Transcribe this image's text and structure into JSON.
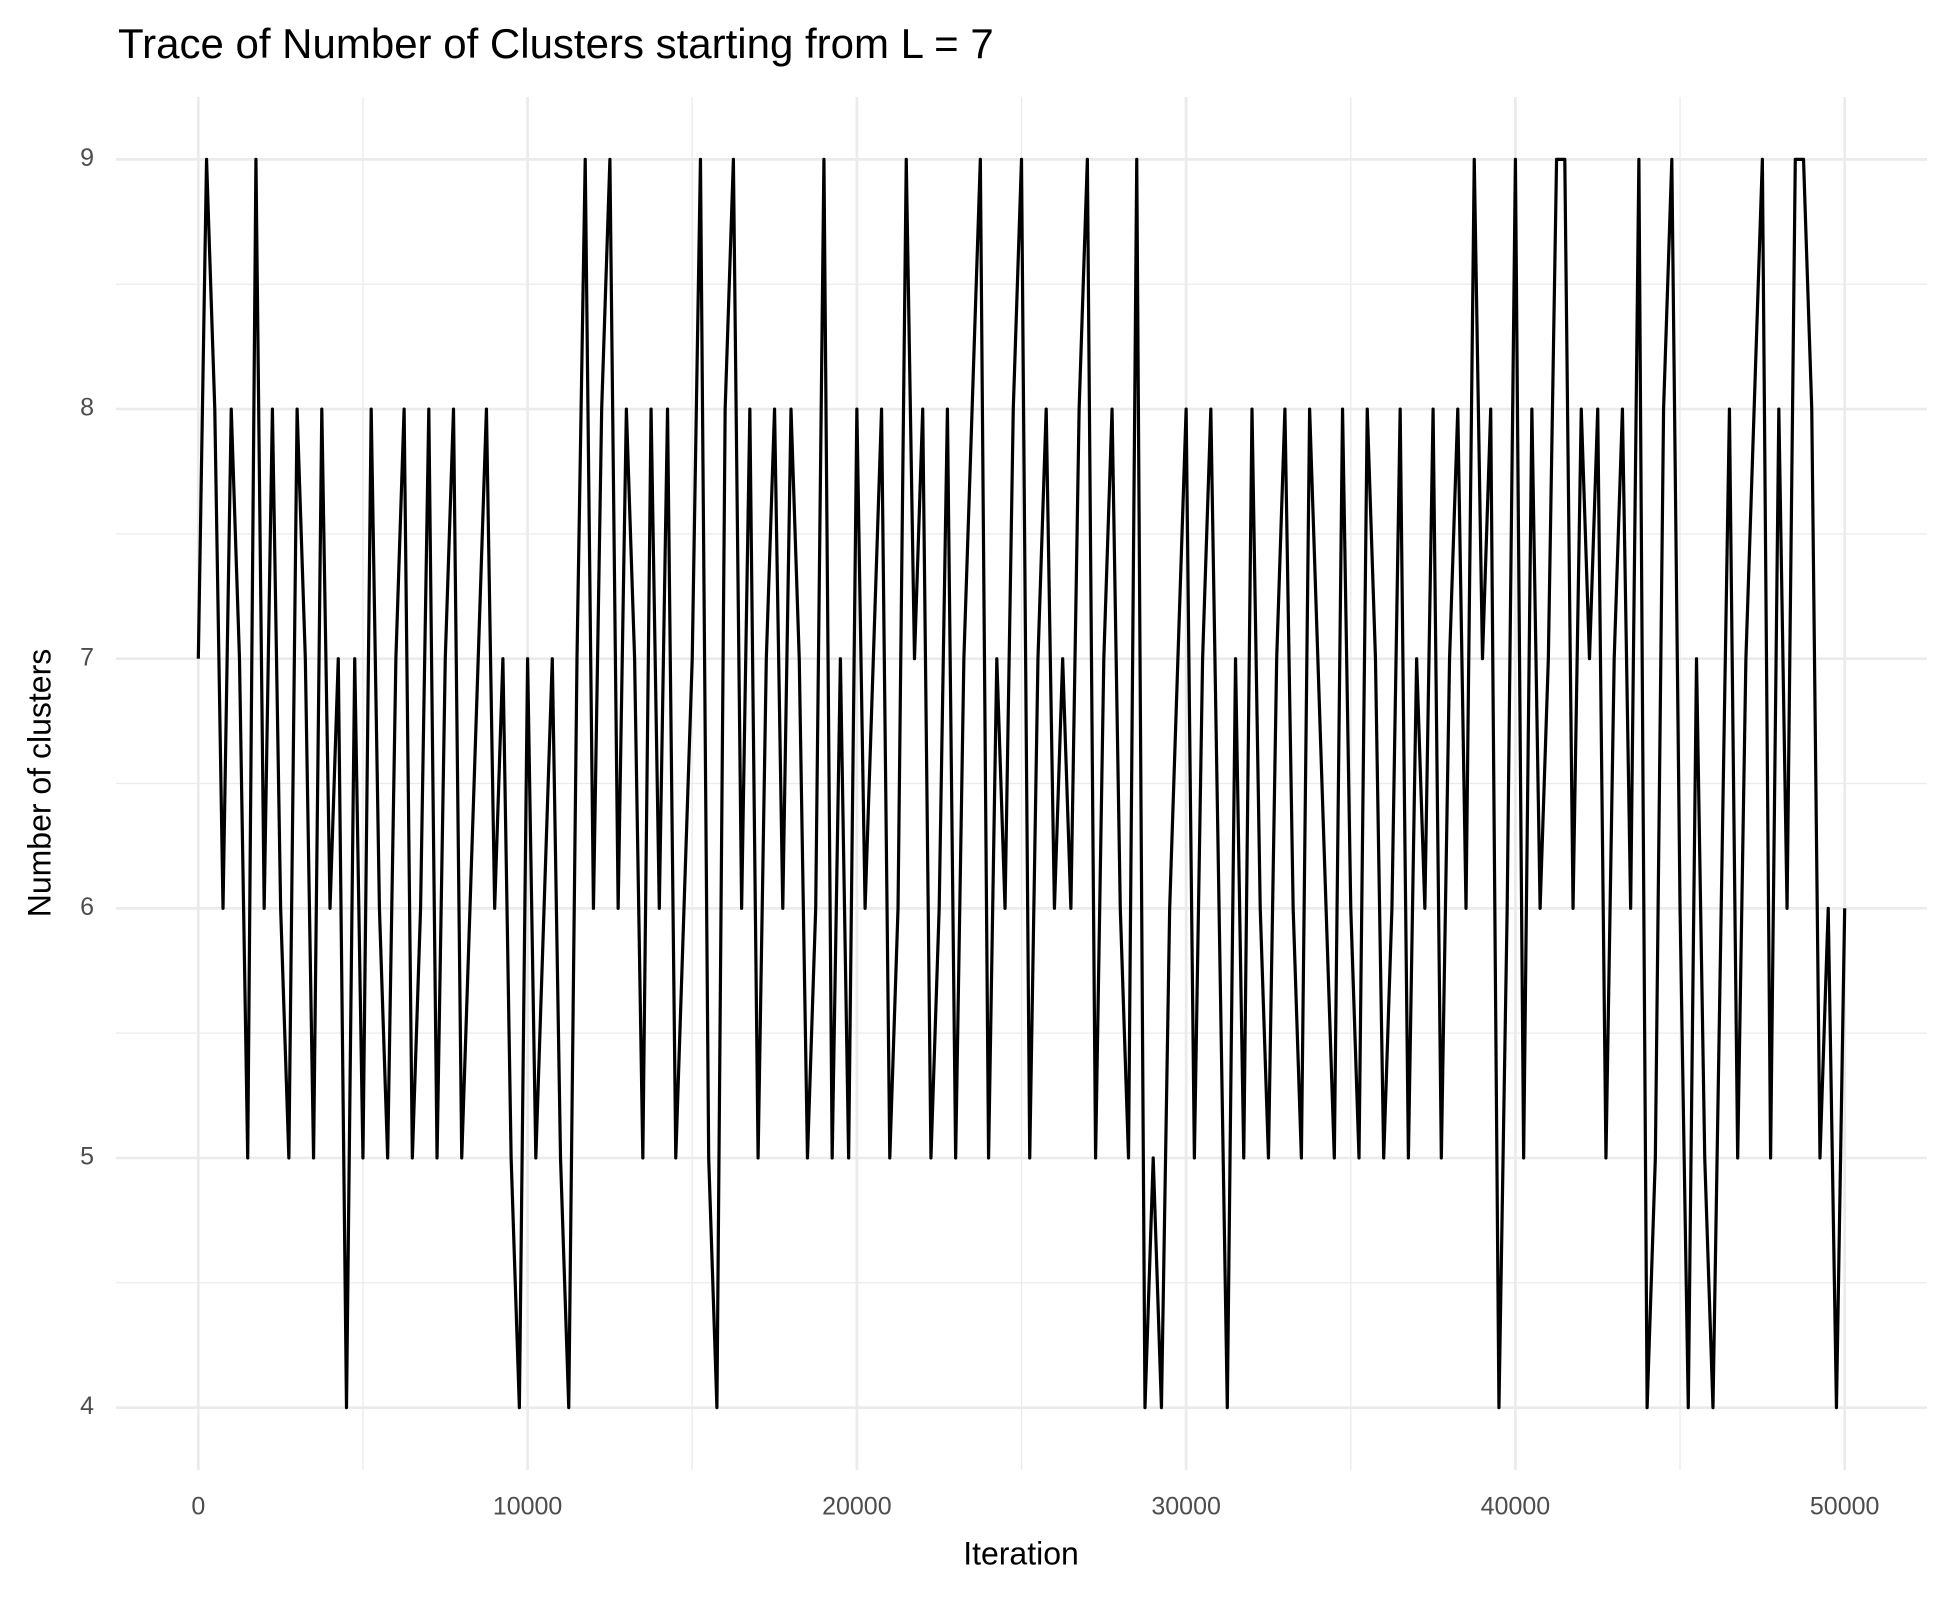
{
  "chart_data": {
    "type": "line",
    "title": "Trace of Number of Clusters starting from L = 7",
    "x_label": "Iteration",
    "y_label": "Number of clusters",
    "x": [
      0,
      250,
      500,
      750,
      1000,
      1250,
      1500,
      1750,
      2000,
      2250,
      2500,
      2750,
      3000,
      3250,
      3500,
      3750,
      4000,
      4250,
      4500,
      4750,
      5000,
      5250,
      5500,
      5750,
      6000,
      6250,
      6500,
      6750,
      7000,
      7250,
      7500,
      7750,
      8000,
      8250,
      8500,
      8750,
      9000,
      9250,
      9500,
      9750,
      10000,
      10250,
      10500,
      10750,
      11000,
      11250,
      11500,
      11750,
      12000,
      12250,
      12500,
      12750,
      13000,
      13250,
      13500,
      13750,
      14000,
      14250,
      14500,
      14750,
      15000,
      15250,
      15500,
      15750,
      16000,
      16250,
      16500,
      16750,
      17000,
      17250,
      17500,
      17750,
      18000,
      18250,
      18500,
      18750,
      19000,
      19250,
      19500,
      19750,
      20000,
      20250,
      20500,
      20750,
      21000,
      21250,
      21500,
      21750,
      22000,
      22250,
      22500,
      22750,
      23000,
      23250,
      23500,
      23750,
      24000,
      24250,
      24500,
      24750,
      25000,
      25250,
      25500,
      25750,
      26000,
      26250,
      26500,
      26750,
      27000,
      27250,
      27500,
      27750,
      28000,
      28250,
      28500,
      28750,
      29000,
      29250,
      29500,
      29750,
      30000,
      30250,
      30500,
      30750,
      31000,
      31250,
      31500,
      31750,
      32000,
      32250,
      32500,
      32750,
      33000,
      33250,
      33500,
      33750,
      34000,
      34250,
      34500,
      34750,
      35000,
      35250,
      35500,
      35750,
      36000,
      36250,
      36500,
      36750,
      37000,
      37250,
      37500,
      37750,
      38000,
      38250,
      38500,
      38750,
      39000,
      39250,
      39500,
      39750,
      40000,
      40250,
      40500,
      40750,
      41000,
      41250,
      41500,
      41750,
      42000,
      42250,
      42500,
      42750,
      43000,
      43250,
      43500,
      43750,
      44000,
      44250,
      44500,
      44750,
      45000,
      45250,
      45500,
      45750,
      46000,
      46250,
      46500,
      46750,
      47000,
      47250,
      47500,
      47750,
      48000,
      48250,
      48500,
      48750,
      49000,
      49250,
      49500,
      49750,
      50000
    ],
    "series": [
      {
        "name": "Number of clusters",
        "color": "#000000",
        "values": [
          7,
          9,
          8,
          6,
          8,
          7,
          5,
          9,
          6,
          8,
          6,
          5,
          8,
          7,
          5,
          8,
          6,
          7,
          4,
          7,
          5,
          8,
          6,
          5,
          7,
          8,
          5,
          6,
          8,
          5,
          7,
          8,
          5,
          6,
          7,
          8,
          6,
          7,
          5,
          4,
          7,
          5,
          6,
          7,
          5,
          4,
          7,
          9,
          6,
          8,
          9,
          6,
          8,
          7,
          5,
          8,
          6,
          8,
          5,
          6,
          7,
          9,
          5,
          4,
          8,
          9,
          6,
          8,
          5,
          7,
          8,
          6,
          8,
          7,
          5,
          6,
          9,
          5,
          7,
          5,
          8,
          6,
          7,
          8,
          5,
          6,
          9,
          7,
          8,
          5,
          6,
          8,
          5,
          7,
          8,
          9,
          5,
          7,
          6,
          8,
          9,
          5,
          7,
          8,
          6,
          7,
          6,
          8,
          9,
          5,
          7,
          8,
          6,
          5,
          9,
          4,
          5,
          4,
          6,
          7,
          8,
          5,
          7,
          8,
          6,
          4,
          7,
          5,
          8,
          6,
          5,
          7,
          8,
          6,
          5,
          8,
          7,
          6,
          5,
          8,
          6,
          5,
          8,
          7,
          5,
          6,
          8,
          5,
          7,
          6,
          8,
          5,
          7,
          8,
          6,
          9,
          7,
          8,
          4,
          6,
          9,
          5,
          8,
          6,
          7,
          9,
          9,
          6,
          8,
          7,
          8,
          5,
          7,
          8,
          6,
          9,
          4,
          5,
          8,
          9,
          6,
          4,
          7,
          5,
          4,
          6,
          8,
          5,
          7,
          8,
          9,
          5,
          8,
          6,
          9,
          9,
          8,
          5,
          6,
          4,
          6
        ]
      }
    ],
    "xlim": [
      -2500,
      52500
    ],
    "ylim": [
      3.75,
      9.25
    ],
    "xticks": [
      0,
      10000,
      20000,
      30000,
      40000,
      50000
    ],
    "yticks": [
      4,
      5,
      6,
      7,
      8,
      9
    ],
    "xminorticks": [
      5000,
      15000,
      25000,
      35000,
      45000
    ],
    "yminorticks": [
      4.5,
      5.5,
      6.5,
      7.5,
      8.5
    ],
    "grid": true
  }
}
